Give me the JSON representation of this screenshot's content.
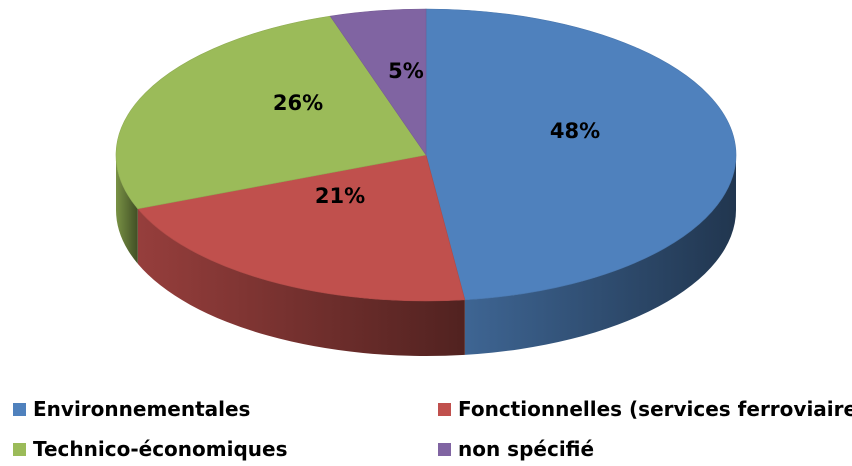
{
  "chart_data": {
    "type": "pie",
    "title": "",
    "three_d": true,
    "legend_position": "bottom",
    "slices": [
      {
        "name": "Environnementales",
        "value": 48,
        "label": "48%",
        "color": "#4F81BD"
      },
      {
        "name": "Fonctionnelles (services ferroviaires)",
        "value": 21,
        "label": "21%",
        "color": "#C0504D"
      },
      {
        "name": "Technico-économiques",
        "value": 26,
        "label": "26%",
        "color": "#9BBB59"
      },
      {
        "name": "non spécifié",
        "value": 5,
        "label": "5%",
        "color": "#8064A2"
      }
    ]
  }
}
